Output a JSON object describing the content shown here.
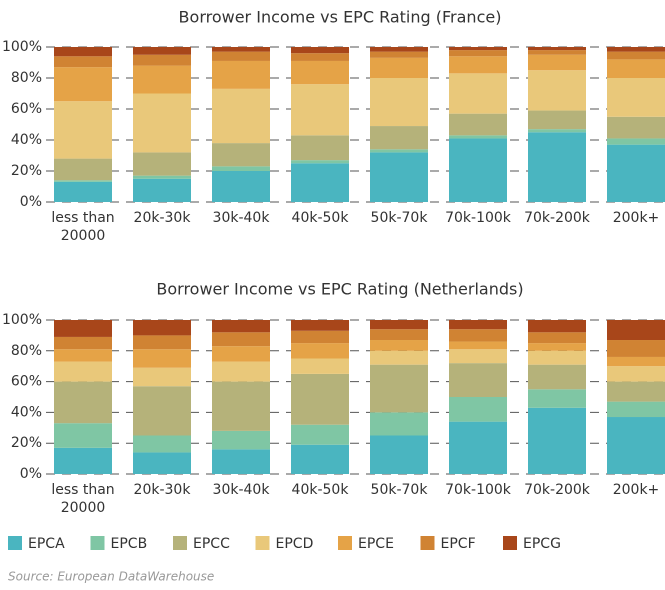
{
  "chart_data": [
    {
      "type": "stacked_bar",
      "title": "Borrower Income vs EPC Rating (France)",
      "categories": [
        "less than 20000",
        "20k-30k",
        "30k-40k",
        "40k-50k",
        "50k-70k",
        "70k-100k",
        "70k-200k",
        "200k+"
      ],
      "ylim": [
        0,
        100
      ],
      "yticks": [
        {
          "value": 0,
          "label": "0%"
        },
        {
          "value": 20,
          "label": "20%"
        },
        {
          "value": 40,
          "label": "40%"
        },
        {
          "value": 60,
          "label": "60%"
        },
        {
          "value": 80,
          "label": "80%"
        },
        {
          "value": 100,
          "label": "100%"
        }
      ],
      "grid": true,
      "series": [
        {
          "name": "EPCA",
          "color": "#4ab5c0",
          "values": [
            13,
            15,
            20,
            25,
            32,
            41,
            45,
            37
          ]
        },
        {
          "name": "EPCB",
          "color": "#7fc6a4",
          "values": [
            1,
            2,
            3,
            2,
            2,
            2,
            2,
            4
          ]
        },
        {
          "name": "EPCC",
          "color": "#b5b27a",
          "values": [
            14,
            15,
            15,
            16,
            15,
            14,
            12,
            14
          ]
        },
        {
          "name": "EPCD",
          "color": "#e9c87a",
          "values": [
            37,
            38,
            35,
            33,
            31,
            26,
            26,
            25
          ]
        },
        {
          "name": "EPCE",
          "color": "#e5a347",
          "values": [
            22,
            18,
            18,
            15,
            13,
            11,
            10,
            12
          ]
        },
        {
          "name": "EPCF",
          "color": "#d08333",
          "values": [
            7,
            7,
            6,
            5,
            4,
            4,
            3,
            5
          ]
        },
        {
          "name": "EPCG",
          "color": "#a8461a",
          "values": [
            6,
            5,
            3,
            4,
            3,
            2,
            2,
            3
          ]
        }
      ]
    },
    {
      "type": "stacked_bar",
      "title": "Borrower Income vs EPC Rating (Netherlands)",
      "categories": [
        "less than 20000",
        "20k-30k",
        "30k-40k",
        "40k-50k",
        "50k-70k",
        "70k-100k",
        "70k-200k",
        "200k+"
      ],
      "ylim": [
        0,
        100
      ],
      "yticks": [
        {
          "value": 0,
          "label": "0%"
        },
        {
          "value": 20,
          "label": "20%"
        },
        {
          "value": 40,
          "label": "40%"
        },
        {
          "value": 60,
          "label": "60%"
        },
        {
          "value": 80,
          "label": "80%"
        },
        {
          "value": 100,
          "label": "100%"
        }
      ],
      "grid": true,
      "series": [
        {
          "name": "EPCA",
          "color": "#4ab5c0",
          "values": [
            17,
            14,
            16,
            19,
            25,
            34,
            43,
            37
          ]
        },
        {
          "name": "EPCB",
          "color": "#7fc6a4",
          "values": [
            16,
            11,
            12,
            13,
            15,
            16,
            12,
            10
          ]
        },
        {
          "name": "EPCC",
          "color": "#b5b27a",
          "values": [
            27,
            32,
            32,
            33,
            31,
            22,
            16,
            13
          ]
        },
        {
          "name": "EPCD",
          "color": "#e9c87a",
          "values": [
            13,
            12,
            13,
            10,
            9,
            9,
            9,
            10
          ]
        },
        {
          "name": "EPCE",
          "color": "#e5a347",
          "values": [
            8,
            12,
            10,
            10,
            7,
            5,
            5,
            6
          ]
        },
        {
          "name": "EPCF",
          "color": "#d08333",
          "values": [
            8,
            9,
            9,
            8,
            7,
            8,
            7,
            11
          ]
        },
        {
          "name": "EPCG",
          "color": "#a8461a",
          "values": [
            11,
            10,
            8,
            7,
            6,
            6,
            8,
            13
          ]
        }
      ]
    }
  ],
  "source": "Source: European DataWarehouse"
}
